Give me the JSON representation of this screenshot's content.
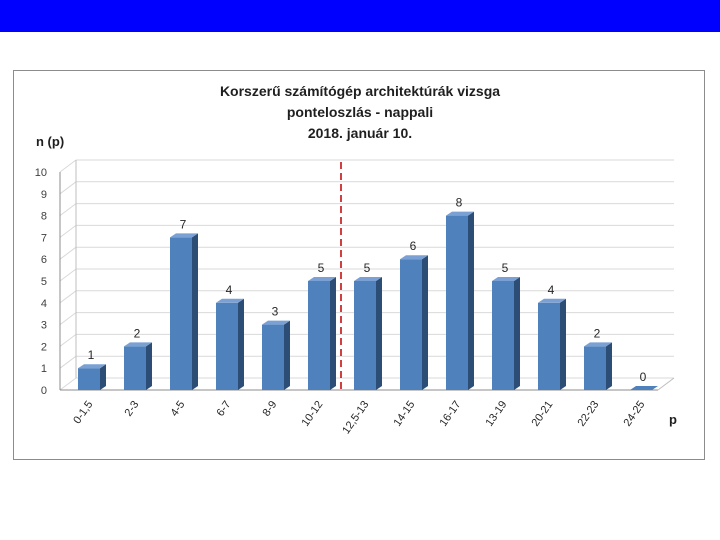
{
  "slide": {
    "top_bar_color": "#0000ff"
  },
  "chart_data": {
    "type": "bar",
    "title": [
      "Korszerű számítógép architektúrák vizsga",
      "ponteloszlás - nappali",
      "2018. január 10."
    ],
    "xlabel": "p",
    "ylabel": "n (p)",
    "categories": [
      "0-1,5",
      "2-3",
      "4-5",
      "6-7",
      "8-9",
      "10-12",
      "12,5-13",
      "14-15",
      "16-17",
      "13-19",
      "20-21",
      "22-23",
      "24-25"
    ],
    "values": [
      1,
      2,
      7,
      4,
      3,
      5,
      5,
      6,
      8,
      5,
      4,
      2,
      0
    ],
    "yticks": [
      0,
      1,
      2,
      3,
      4,
      5,
      6,
      7,
      8,
      9,
      10
    ],
    "ylim": [
      0,
      10
    ],
    "grid": true,
    "threshold_after_category": "10-12",
    "bar_color": "#4f81bd",
    "threshold_color": "#c00000"
  }
}
